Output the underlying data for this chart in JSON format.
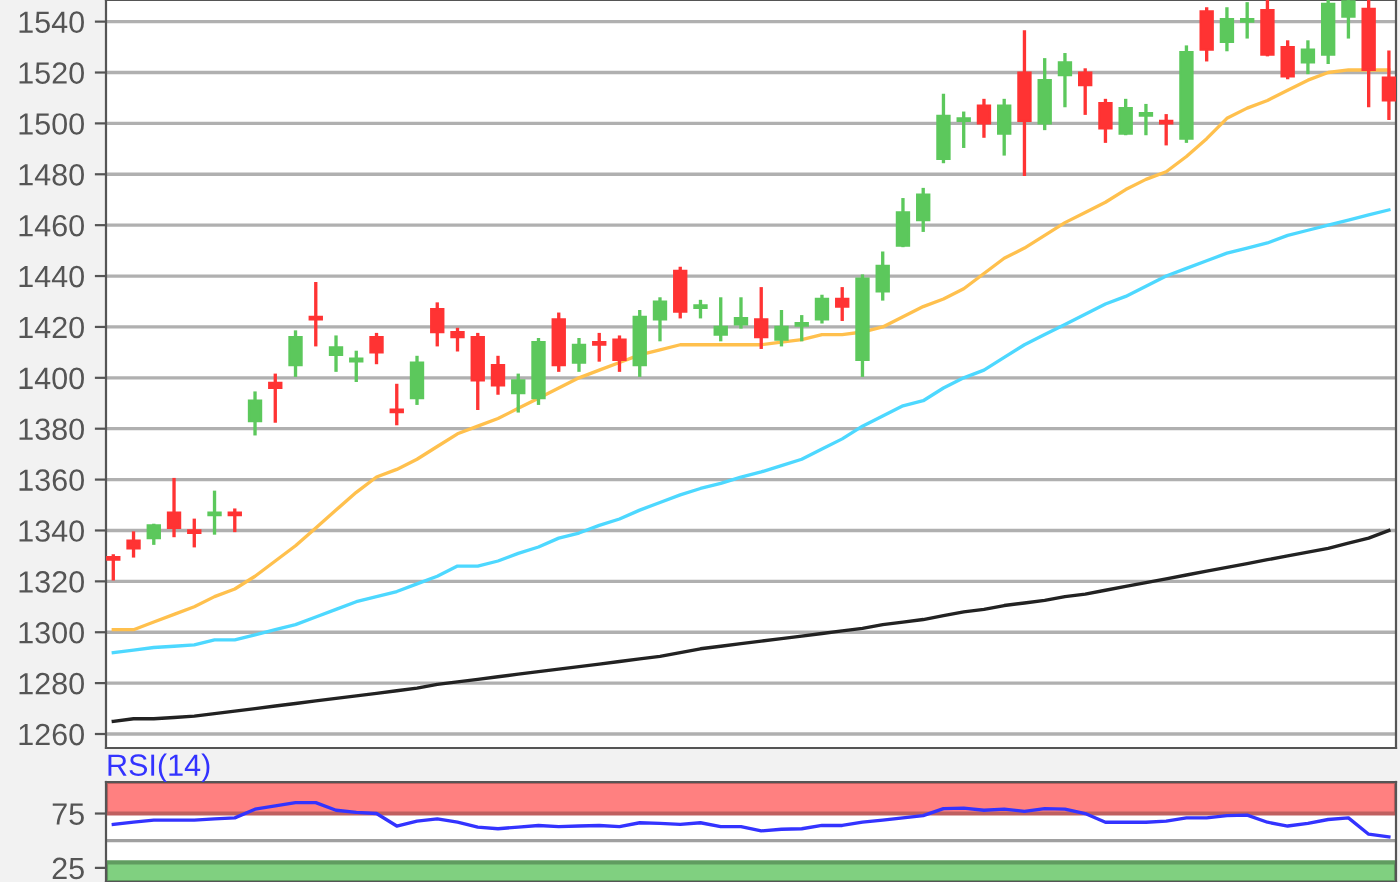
{
  "chart_data": [
    {
      "type": "candlestick",
      "categories": [
        null,
        null,
        null,
        null,
        null,
        null,
        null,
        null,
        null,
        null,
        null,
        null,
        null,
        null,
        null,
        null,
        null,
        null,
        null,
        null,
        null,
        null,
        null,
        null,
        null,
        null,
        null,
        null,
        null,
        null,
        null,
        null,
        null,
        null,
        null,
        null,
        null,
        null,
        null,
        null,
        null,
        null,
        null,
        null,
        null,
        null,
        null,
        null,
        null,
        null,
        null,
        null,
        null,
        null,
        null,
        null,
        null,
        null,
        null,
        null,
        null,
        null,
        null,
        null
      ],
      "ohlc": [
        [
          1329.5,
          1330,
          1321,
          1328.5
        ],
        [
          1336,
          1339,
          1330,
          1333
        ],
        [
          1337,
          1342,
          1335,
          1342
        ],
        [
          1347,
          1360,
          1338,
          1341
        ],
        [
          1340,
          1344,
          1334,
          1339
        ],
        [
          1346,
          1355,
          1339,
          1347
        ],
        [
          1347,
          1348,
          1340,
          1346
        ],
        [
          1383,
          1394,
          1378,
          1391
        ],
        [
          1398,
          1401,
          1383,
          1396
        ],
        [
          1405,
          1418,
          1401,
          1416
        ],
        [
          1424,
          1437,
          1413,
          1423
        ],
        [
          1409,
          1416,
          1403,
          1412
        ],
        [
          1406.5,
          1410,
          1399,
          1407.5
        ],
        [
          1416,
          1417,
          1406,
          1410
        ],
        [
          1387.5,
          1397,
          1382,
          1386.5
        ],
        [
          1392,
          1408,
          1390,
          1406
        ],
        [
          1427,
          1429,
          1413,
          1418
        ],
        [
          1418,
          1419,
          1411,
          1416
        ],
        [
          1416,
          1417,
          1388,
          1399
        ],
        [
          1405,
          1408,
          1394,
          1397
        ],
        [
          1394,
          1401,
          1387,
          1399
        ],
        [
          1392,
          1415,
          1390,
          1414
        ],
        [
          1423,
          1425,
          1403,
          1405
        ],
        [
          1406,
          1415,
          1403,
          1413
        ],
        [
          1414,
          1417,
          1407,
          1413
        ],
        [
          1415,
          1416,
          1403,
          1407
        ],
        [
          1405,
          1426,
          1401,
          1424
        ],
        [
          1423,
          1431,
          1415,
          1430
        ],
        [
          1442,
          1443,
          1424,
          1426
        ],
        [
          1427.5,
          1430,
          1424,
          1428.5
        ],
        [
          1417,
          1431,
          1415,
          1420
        ],
        [
          1421,
          1431,
          1420,
          1423.5
        ],
        [
          1423,
          1435,
          1412,
          1416
        ],
        [
          1415,
          1426,
          1413,
          1420
        ],
        [
          1420.5,
          1424,
          1415,
          1421.5
        ],
        [
          1423,
          1432,
          1422,
          1431
        ],
        [
          1431,
          1435,
          1423,
          1428
        ],
        [
          1407,
          1440,
          1401,
          1439
        ],
        [
          1434,
          1449,
          1431,
          1444
        ],
        [
          1452,
          1470,
          1452,
          1465
        ],
        [
          1462,
          1474,
          1458,
          1472
        ],
        [
          1486,
          1511,
          1485,
          1503
        ],
        [
          1501,
          1504,
          1491,
          1502
        ],
        [
          1507,
          1509,
          1495,
          1500
        ],
        [
          1496,
          1509,
          1488,
          1507
        ],
        [
          1520,
          1536,
          1480,
          1501
        ],
        [
          1500,
          1525,
          1498,
          1517
        ],
        [
          1519,
          1527,
          1507,
          1524
        ],
        [
          1520,
          1521,
          1504,
          1515
        ],
        [
          1508,
          1509,
          1493,
          1498
        ],
        [
          1496,
          1509,
          1496,
          1506
        ],
        [
          1503,
          1507,
          1496,
          1504
        ],
        [
          1501,
          1503,
          1492,
          1500
        ],
        [
          1494,
          1530,
          1493,
          1528
        ],
        [
          1544,
          1545,
          1525,
          1529
        ],
        [
          1532,
          1545,
          1529,
          1541
        ],
        [
          1540,
          1547,
          1534,
          1541
        ],
        [
          1544.5,
          1548,
          1527,
          1527
        ],
        [
          1530,
          1532,
          1518,
          1518.5
        ],
        [
          1524,
          1532,
          1520,
          1529
        ],
        [
          1527,
          1548,
          1524,
          1547
        ],
        [
          1542,
          1548,
          1534,
          1548
        ],
        [
          1545,
          1548,
          1507,
          1521
        ],
        [
          1518,
          1528,
          1502,
          1509
        ]
      ],
      "colors": [
        "#ff3333",
        "#ff3333",
        "#5cc85c",
        "#ff3333",
        "#ff3333",
        "#5cc85c",
        "#ff3333",
        "#5cc85c",
        "#ff3333",
        "#5cc85c",
        "#ff3333",
        "#5cc85c",
        "#5cc85c",
        "#ff3333",
        "#ff3333",
        "#5cc85c",
        "#ff3333",
        "#ff3333",
        "#ff3333",
        "#ff3333",
        "#5cc85c",
        "#5cc85c",
        "#ff3333",
        "#5cc85c",
        "#ff3333",
        "#ff3333",
        "#5cc85c",
        "#5cc85c",
        "#ff3333",
        "#5cc85c",
        "#5cc85c",
        "#5cc85c",
        "#ff3333",
        "#5cc85c",
        "#5cc85c",
        "#5cc85c",
        "#ff3333",
        "#5cc85c",
        "#5cc85c",
        "#5cc85c",
        "#5cc85c",
        "#5cc85c",
        "#5cc85c",
        "#ff3333",
        "#5cc85c",
        "#ff3333",
        "#5cc85c",
        "#5cc85c",
        "#ff3333",
        "#ff3333",
        "#5cc85c",
        "#5cc85c",
        "#ff3333",
        "#5cc85c",
        "#ff3333",
        "#5cc85c",
        "#5cc85c",
        "#ff3333",
        "#ff3333",
        "#5cc85c",
        "#5cc85c",
        "#5cc85c",
        "#ff3333",
        "#ff3333"
      ],
      "series": [
        {
          "type": "line",
          "color": "#ffc04d",
          "values": [
            1301,
            1301,
            1304,
            1307,
            1310,
            1314,
            1317,
            1322,
            1328,
            1334,
            1341,
            1348,
            1355,
            1361,
            1364,
            1368,
            1373,
            1378,
            1381,
            1384,
            1388,
            1392,
            1396,
            1400,
            1403,
            1406,
            1409,
            1411,
            1413,
            1413,
            1413,
            1413,
            1413,
            1414,
            1415,
            1417,
            1417,
            1418,
            1420,
            1424,
            1428,
            1431,
            1435,
            1441,
            1447,
            1451,
            1456,
            1461,
            1465,
            1469,
            1474,
            1478,
            1481,
            1487,
            1494,
            1502,
            1506,
            1509,
            1513,
            1517,
            1520,
            1521,
            1521,
            1521
          ]
        },
        {
          "type": "line",
          "color": "#4dd8ff",
          "values": [
            1292,
            1293,
            1294,
            1294.5,
            1295,
            1297,
            1297,
            1299,
            1301,
            1303,
            1306,
            1309,
            1312,
            1314,
            1316,
            1319,
            1322,
            1326,
            1326,
            1328,
            1331,
            1333.5,
            1337,
            1339,
            1342,
            1344.5,
            1348,
            1351,
            1354,
            1356.5,
            1358.5,
            1361,
            1363,
            1365.5,
            1368,
            1372,
            1376,
            1381,
            1385,
            1389,
            1391,
            1396,
            1400,
            1403,
            1408,
            1413,
            1417,
            1421,
            1425,
            1429,
            1432,
            1436,
            1440,
            1443,
            1446,
            1449,
            1451,
            1453,
            1456,
            1458,
            1460,
            1462,
            1464,
            1466
          ]
        },
        {
          "type": "line",
          "color": "#222222",
          "values": [
            1265,
            1266,
            1266,
            1266.5,
            1267,
            1268,
            1269,
            1270,
            1271,
            1272,
            1273,
            1274,
            1275,
            1276,
            1277,
            1278,
            1279.5,
            1280.5,
            1281.5,
            1282.5,
            1283.5,
            1284.5,
            1285.5,
            1286.5,
            1287.5,
            1288.5,
            1289.5,
            1290.5,
            1292,
            1293.5,
            1294.5,
            1295.5,
            1296.5,
            1297.5,
            1298.5,
            1299.5,
            1300.5,
            1301.5,
            1303,
            1304,
            1305,
            1306.5,
            1308,
            1309,
            1310.5,
            1311.5,
            1312.5,
            1314,
            1315,
            1316.5,
            1318,
            1319.5,
            1321,
            1322.5,
            1324,
            1325.5,
            1327,
            1328.5,
            1330,
            1331.5,
            1333,
            1335,
            1337,
            1340
          ]
        }
      ],
      "ylim": [
        1254.5,
        1548.5
      ],
      "yticks": [
        1260,
        1280,
        1300,
        1320,
        1340,
        1360,
        1380,
        1400,
        1420,
        1440,
        1460,
        1480,
        1500,
        1520,
        1540
      ],
      "grid": "y",
      "tick_labels": "y"
    },
    {
      "type": "line",
      "title": "RSI(14)",
      "categories": [
        null,
        null,
        null,
        null,
        null,
        null,
        null,
        null,
        null,
        null,
        null,
        null,
        null,
        null,
        null,
        null,
        null,
        null,
        null,
        null,
        null,
        null,
        null,
        null,
        null,
        null,
        null,
        null,
        null,
        null,
        null,
        null,
        null,
        null,
        null,
        null,
        null,
        null,
        null,
        null,
        null,
        null,
        null,
        null,
        null,
        null,
        null,
        null,
        null,
        null,
        null,
        null,
        null,
        null,
        null,
        null,
        null,
        null,
        null,
        null,
        null,
        null,
        null,
        null
      ],
      "series": [
        {
          "color": "#3333ff",
          "values": [
            65,
            67,
            69,
            69,
            69,
            70,
            71,
            79,
            82,
            85,
            85,
            78,
            76,
            75,
            63.5,
            68,
            70,
            67,
            62.5,
            61,
            62.5,
            64,
            63,
            63.5,
            64,
            63,
            66.5,
            66,
            65,
            66.5,
            63,
            63,
            59,
            60.5,
            61,
            64,
            64,
            67,
            69,
            71,
            73,
            79.5,
            80,
            78,
            79,
            77,
            79.5,
            79,
            75,
            67,
            67,
            67,
            68,
            71,
            71,
            73,
            73.5,
            67,
            63.5,
            66,
            69.5,
            71,
            56,
            53.5
          ]
        }
      ],
      "bands": [
        {
          "axis": "y",
          "from": 75,
          "to": 104,
          "color": "#ff8080"
        },
        {
          "axis": "y",
          "from": 12,
          "to": 30,
          "color": "#80d080"
        }
      ],
      "ref_lines": [
        {
          "axis": "y",
          "value": 50,
          "color": "#a0a0a0"
        }
      ],
      "ylim": [
        12,
        104
      ],
      "yticks": [
        25,
        75
      ],
      "tick_labels": "y"
    }
  ]
}
